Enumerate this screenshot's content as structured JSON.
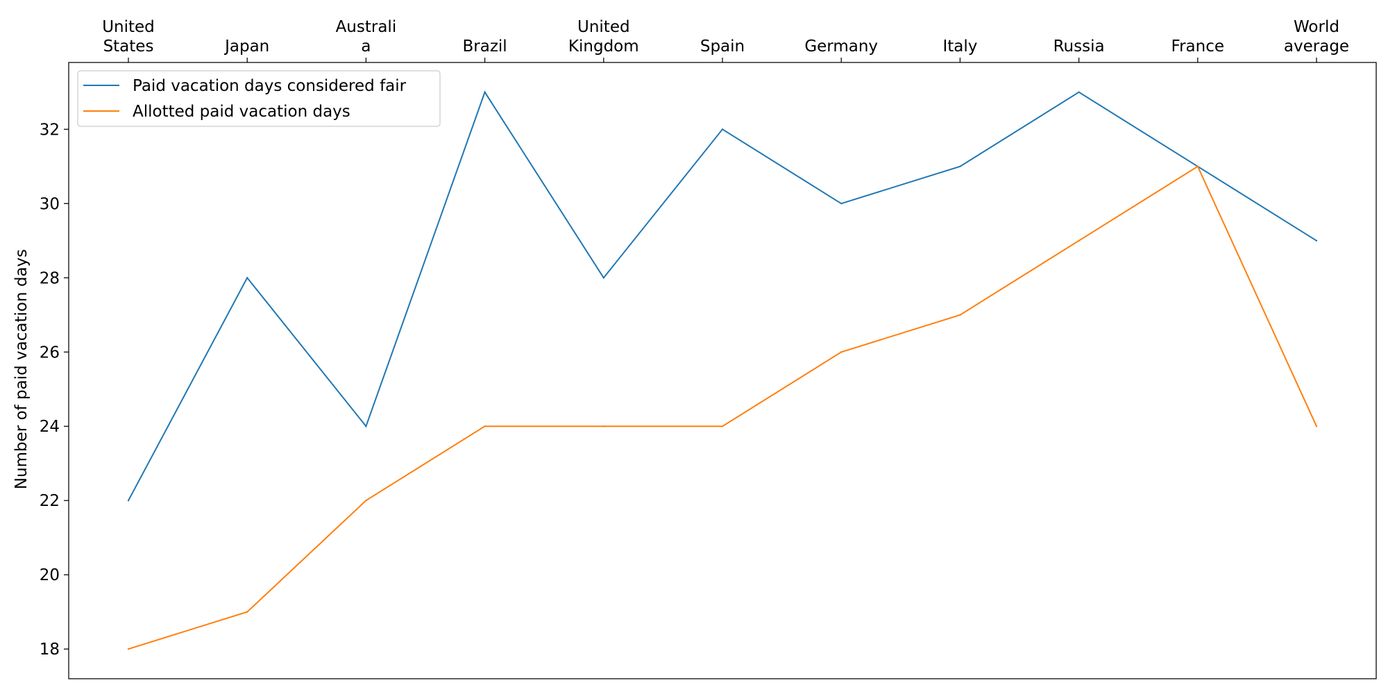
{
  "chart_data": {
    "type": "line",
    "title": "",
    "xlabel": "",
    "ylabel": "Number of paid vacation days",
    "categories": [
      [
        "United",
        "States"
      ],
      [
        "Japan"
      ],
      [
        "Australi",
        "a"
      ],
      [
        "Brazil"
      ],
      [
        "United",
        "Kingdom"
      ],
      [
        "Spain"
      ],
      [
        "Germany"
      ],
      [
        "Italy"
      ],
      [
        "Russia"
      ],
      [
        "France"
      ],
      [
        "World",
        "average"
      ]
    ],
    "x_axis_position": "top",
    "ylim": [
      17.2,
      33.8
    ],
    "y_ticks": [
      18,
      20,
      22,
      24,
      26,
      28,
      30,
      32
    ],
    "grid": false,
    "legend_position": "top-left",
    "series": [
      {
        "name": "Paid vacation days considered fair",
        "color": "#1f77b4",
        "values": [
          22,
          28,
          24,
          33,
          28,
          32,
          30,
          31,
          33,
          31,
          29
        ]
      },
      {
        "name": "Allotted paid vacation days",
        "color": "#ff7f0e",
        "values": [
          18,
          19,
          22,
          24,
          24,
          24,
          26,
          27,
          29,
          31,
          24
        ]
      }
    ]
  }
}
